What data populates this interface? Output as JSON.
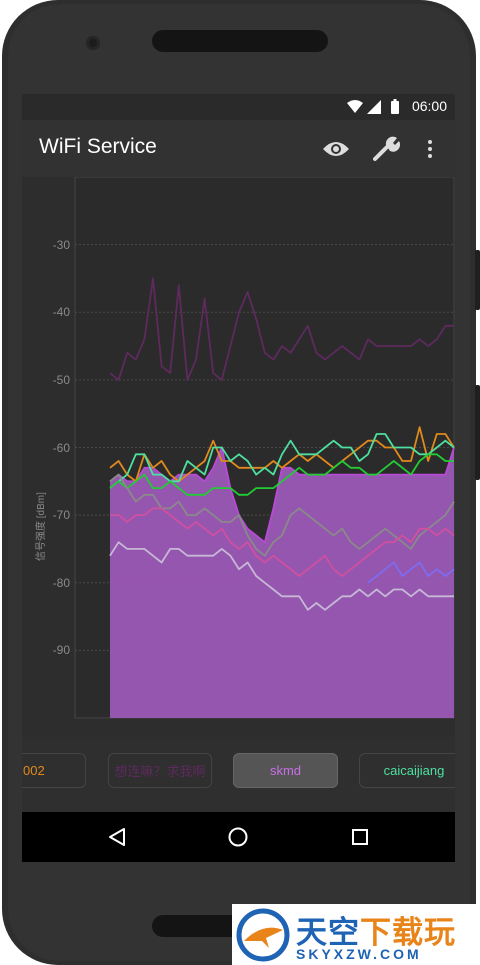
{
  "status_bar": {
    "time": "06:00"
  },
  "app_bar": {
    "title": "WiFi Service"
  },
  "chart_data": {
    "type": "line",
    "ylabel": "信号强度 [dBm]",
    "ylim": [
      -100,
      -20
    ],
    "yticks": [
      -30,
      -40,
      -50,
      -60,
      -70,
      -80,
      -90
    ],
    "grid": true,
    "series": [
      {
        "color": "#b84ad6",
        "fill": "#9b59b6",
        "values": [
          -65,
          -64,
          -65,
          -65,
          -63,
          -63,
          -64,
          -65,
          -64,
          -64,
          -64,
          -65,
          -63,
          -60,
          -66,
          -70,
          -72,
          -73,
          -74,
          -69,
          -63,
          -63,
          -64,
          -64,
          -64,
          -64,
          -64,
          -64,
          -64,
          -64,
          -64,
          -64,
          -64,
          -64,
          -64,
          -64,
          -64,
          -64,
          -64,
          -64,
          -60
        ]
      },
      {
        "color": "#5e2a5e",
        "values": [
          -49,
          -50,
          -46,
          -47,
          -44,
          -35,
          -48,
          -49,
          -36,
          -50,
          -47,
          -38,
          -49,
          -50,
          -45,
          -40,
          -37,
          -41,
          -46,
          -47,
          -45,
          -46,
          -44,
          -42,
          -46,
          -47,
          -46,
          -45,
          -46,
          -47,
          -44,
          -45,
          -45,
          -45,
          -45,
          -45,
          -44,
          -45,
          -44,
          -42,
          -42
        ]
      },
      {
        "color": "#e08a1c",
        "values": [
          -63,
          -62,
          -64,
          -65,
          -61,
          -63,
          -62,
          -64,
          -65,
          -64,
          -63,
          -62,
          -59,
          -62,
          -62,
          -63,
          -63,
          -63,
          -63,
          -62,
          -63,
          -62,
          -61,
          -62,
          -61,
          -62,
          -63,
          -62,
          -61,
          -60,
          -59,
          -59,
          -60,
          -60,
          -62,
          -62,
          -57,
          -62,
          -58,
          -58,
          -60
        ]
      },
      {
        "color": "#4de0a0",
        "values": [
          -66,
          -65,
          -64,
          -61,
          -61,
          -64,
          -64,
          -65,
          -65,
          -62,
          -63,
          -64,
          -60,
          -60,
          -62,
          -61,
          -62,
          -64,
          -63,
          -64,
          -61,
          -59,
          -61,
          -61,
          -61,
          -60,
          -59,
          -60,
          -60,
          -62,
          -61,
          -58,
          -58,
          -60,
          -60,
          -60,
          -61,
          -61,
          -60,
          -59,
          -60
        ]
      },
      {
        "color": "#22cc33",
        "values": [
          -66,
          -65,
          -66,
          -65,
          -64,
          -66,
          -66,
          -65,
          -66,
          -67,
          -67,
          -67,
          -66,
          -66,
          -66,
          -67,
          -67,
          -66,
          -66,
          -66,
          -65,
          -64,
          -63,
          -64,
          -64,
          -64,
          -63,
          -62,
          -63,
          -63,
          -64,
          -64,
          -63,
          -62,
          -63,
          -64,
          -62,
          -61,
          -61,
          -62,
          -62
        ]
      },
      {
        "color": "#8a8a8a",
        "values": [
          -65,
          -64,
          -66,
          -68,
          -67,
          -67,
          -69,
          -69,
          -68,
          -70,
          -70,
          -69,
          -70,
          -71,
          -71,
          -70,
          -73,
          -75,
          -76,
          -74,
          -73,
          -70,
          -69,
          -70,
          -71,
          -72,
          -73,
          -72,
          -74,
          -75,
          -74,
          -73,
          -72,
          -73,
          -74,
          -75,
          -73,
          -72,
          -71,
          -70,
          -68
        ]
      },
      {
        "color": "#d050a0",
        "values": [
          -70,
          -70,
          -71,
          -70,
          -70,
          -69,
          -69,
          -70,
          -71,
          -72,
          -71,
          -72,
          -73,
          -72,
          -74,
          -75,
          -74,
          -76,
          -77,
          -76,
          -77,
          -78,
          -79,
          -78,
          -77,
          -76,
          -78,
          -79,
          -78,
          -77,
          -76,
          -75,
          -74,
          -74,
          -73,
          -74,
          -72,
          -72,
          -73,
          -72,
          -73
        ]
      },
      {
        "color": "#c7b8d6",
        "values": [
          -76,
          -74,
          -75,
          -75,
          -75,
          -76,
          -77,
          -75,
          -75,
          -76,
          -76,
          -76,
          -76,
          -75,
          -76,
          -78,
          -77,
          -79,
          -80,
          -81,
          -82,
          -82,
          -82,
          -84,
          -83,
          -84,
          -83,
          -82,
          -82,
          -81,
          -82,
          -81,
          -82,
          -81,
          -81,
          -82,
          -81,
          -82,
          -82,
          -82,
          -82
        ]
      },
      {
        "color": "#7d6cf0",
        "values": [
          null,
          null,
          null,
          null,
          null,
          null,
          null,
          null,
          null,
          null,
          null,
          null,
          null,
          null,
          null,
          null,
          null,
          null,
          null,
          null,
          null,
          null,
          null,
          null,
          null,
          null,
          null,
          null,
          null,
          null,
          -80,
          -79,
          -78,
          -77,
          -79,
          -78,
          -77,
          -79,
          -78,
          -79,
          -78
        ]
      }
    ]
  },
  "ssid_list": [
    {
      "name": "002",
      "color": "#e08a1c",
      "selected": false
    },
    {
      "name": "想连嘛？求我啊",
      "color": "#5e2a5e",
      "selected": false
    },
    {
      "name": "skmd",
      "color": "#c96ee6",
      "selected": true
    },
    {
      "name": "caicaijiang",
      "color": "#4de0a0",
      "selected": false
    }
  ],
  "nav_bar": {
    "back_icon": "triangle-back-icon",
    "home_icon": "circle-home-icon",
    "recents_icon": "square-recents-icon"
  },
  "watermark": {
    "logo_text": "天空",
    "logo_text_accent": "下载玩",
    "logo_subtext": "SKYXZW.COM"
  }
}
